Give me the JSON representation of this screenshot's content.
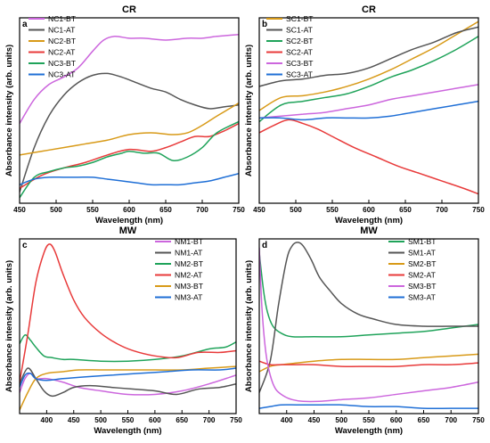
{
  "chart_data": [
    {
      "type": "line",
      "panel_label": "a",
      "title": "CR",
      "xlabel": "Wavelength (nm)",
      "ylabel": "Absorbance intensity (arb. units)",
      "xlim": [
        450,
        750
      ],
      "xticks": [
        450,
        500,
        550,
        600,
        650,
        700,
        750
      ],
      "ylim": [
        0,
        1
      ],
      "y_tick_labels": false,
      "legend_position": "top-left",
      "series": [
        {
          "name": "NC1-BT",
          "color": "#cc66dd",
          "x": [
            450,
            470,
            490,
            510,
            530,
            550,
            565,
            580,
            600,
            620,
            650,
            680,
            700,
            720,
            750
          ],
          "y": [
            0.43,
            0.56,
            0.64,
            0.68,
            0.73,
            0.82,
            0.88,
            0.9,
            0.89,
            0.89,
            0.88,
            0.89,
            0.89,
            0.9,
            0.91
          ]
        },
        {
          "name": "NC1-AT",
          "color": "#555555",
          "x": [
            450,
            470,
            490,
            510,
            530,
            550,
            570,
            590,
            610,
            630,
            650,
            670,
            690,
            710,
            730,
            750
          ],
          "y": [
            0.06,
            0.3,
            0.47,
            0.58,
            0.65,
            0.69,
            0.7,
            0.68,
            0.65,
            0.62,
            0.6,
            0.56,
            0.53,
            0.51,
            0.52,
            0.53
          ]
        },
        {
          "name": "NC2-BT",
          "color": "#d89a18",
          "x": [
            450,
            480,
            510,
            540,
            570,
            600,
            630,
            660,
            680,
            700,
            720,
            750
          ],
          "y": [
            0.26,
            0.28,
            0.3,
            0.32,
            0.34,
            0.37,
            0.38,
            0.37,
            0.38,
            0.42,
            0.47,
            0.54
          ]
        },
        {
          "name": "NC2-AT",
          "color": "#e83a3a",
          "x": [
            450,
            480,
            510,
            540,
            570,
            600,
            630,
            650,
            670,
            690,
            710,
            730,
            750
          ],
          "y": [
            0.08,
            0.15,
            0.19,
            0.22,
            0.26,
            0.29,
            0.28,
            0.3,
            0.33,
            0.36,
            0.36,
            0.39,
            0.43
          ]
        },
        {
          "name": "NC3-BT",
          "color": "#1fa35a",
          "x": [
            450,
            470,
            490,
            510,
            530,
            550,
            570,
            590,
            600,
            620,
            640,
            660,
            680,
            700,
            720,
            750
          ],
          "y": [
            0.03,
            0.14,
            0.17,
            0.19,
            0.2,
            0.22,
            0.25,
            0.27,
            0.28,
            0.27,
            0.27,
            0.23,
            0.25,
            0.3,
            0.38,
            0.44
          ]
        },
        {
          "name": "NC3-AT",
          "color": "#1f6fd6",
          "x": [
            450,
            470,
            490,
            510,
            530,
            550,
            570,
            590,
            610,
            630,
            650,
            670,
            690,
            710,
            730,
            750
          ],
          "y": [
            0.1,
            0.13,
            0.14,
            0.14,
            0.14,
            0.14,
            0.13,
            0.12,
            0.11,
            0.1,
            0.1,
            0.1,
            0.11,
            0.12,
            0.14,
            0.16
          ]
        }
      ]
    },
    {
      "type": "line",
      "panel_label": "b",
      "title": "CR",
      "xlabel": "Wavelength (nm)",
      "ylabel": "Absorbance intensity (arb. units)",
      "xlim": [
        450,
        750
      ],
      "xticks": [
        450,
        500,
        550,
        600,
        650,
        700,
        750
      ],
      "ylim": [
        0,
        1
      ],
      "y_tick_labels": false,
      "legend_position": "top-left",
      "series": [
        {
          "name": "SC1-BT",
          "color": "#d89a18",
          "x": [
            450,
            480,
            510,
            540,
            570,
            600,
            630,
            660,
            690,
            720,
            750
          ],
          "y": [
            0.5,
            0.57,
            0.58,
            0.6,
            0.63,
            0.67,
            0.72,
            0.78,
            0.84,
            0.91,
            0.98
          ]
        },
        {
          "name": "SC1-AT",
          "color": "#555555",
          "x": [
            450,
            480,
            510,
            540,
            570,
            600,
            630,
            660,
            690,
            720,
            750
          ],
          "y": [
            0.63,
            0.66,
            0.67,
            0.69,
            0.7,
            0.73,
            0.78,
            0.83,
            0.87,
            0.92,
            0.95
          ]
        },
        {
          "name": "SC2-BT",
          "color": "#1fa35a",
          "x": [
            450,
            480,
            510,
            540,
            570,
            600,
            630,
            660,
            690,
            720,
            750
          ],
          "y": [
            0.44,
            0.53,
            0.55,
            0.57,
            0.59,
            0.63,
            0.68,
            0.72,
            0.77,
            0.83,
            0.9
          ]
        },
        {
          "name": "SC2-AT",
          "color": "#e83a3a",
          "x": [
            450,
            470,
            490,
            510,
            530,
            550,
            580,
            610,
            640,
            670,
            700,
            730,
            750
          ],
          "y": [
            0.38,
            0.42,
            0.45,
            0.43,
            0.4,
            0.36,
            0.3,
            0.25,
            0.2,
            0.16,
            0.12,
            0.08,
            0.05
          ]
        },
        {
          "name": "SC3-BT",
          "color": "#cc66dd",
          "x": [
            450,
            480,
            510,
            540,
            570,
            600,
            630,
            660,
            690,
            720,
            750
          ],
          "y": [
            0.46,
            0.47,
            0.48,
            0.49,
            0.51,
            0.53,
            0.56,
            0.58,
            0.6,
            0.62,
            0.64
          ]
        },
        {
          "name": "SC3-AT",
          "color": "#1f6fd6",
          "x": [
            450,
            480,
            510,
            540,
            570,
            600,
            630,
            660,
            690,
            720,
            750
          ],
          "y": [
            0.46,
            0.46,
            0.45,
            0.46,
            0.46,
            0.46,
            0.47,
            0.49,
            0.51,
            0.53,
            0.55
          ]
        }
      ]
    },
    {
      "type": "line",
      "panel_label": "c",
      "title": "MW",
      "xlabel": "Wavelength (nm)",
      "ylabel": "Absorbance intensity (arb. units)",
      "xlim": [
        350,
        750
      ],
      "xticks": [
        400,
        450,
        500,
        550,
        600,
        650,
        700,
        750
      ],
      "ylim": [
        0,
        1
      ],
      "y_tick_labels": false,
      "legend_position": "top-right",
      "series": [
        {
          "name": "NM1-BT",
          "color": "#cc66dd",
          "x": [
            350,
            360,
            370,
            380,
            400,
            430,
            460,
            500,
            550,
            600,
            650,
            700,
            750
          ],
          "y": [
            0.12,
            0.2,
            0.23,
            0.2,
            0.2,
            0.18,
            0.15,
            0.13,
            0.11,
            0.11,
            0.13,
            0.17,
            0.22
          ]
        },
        {
          "name": "NM1-AT",
          "color": "#555555",
          "x": [
            350,
            365,
            380,
            395,
            410,
            430,
            450,
            480,
            520,
            560,
            600,
            640,
            680,
            720,
            750
          ],
          "y": [
            0.17,
            0.26,
            0.2,
            0.13,
            0.1,
            0.12,
            0.15,
            0.16,
            0.15,
            0.14,
            0.13,
            0.11,
            0.14,
            0.15,
            0.17
          ]
        },
        {
          "name": "NM2-BT",
          "color": "#1fa35a",
          "x": [
            350,
            360,
            370,
            380,
            395,
            410,
            430,
            450,
            500,
            550,
            600,
            650,
            700,
            730,
            750
          ],
          "y": [
            0.4,
            0.45,
            0.42,
            0.38,
            0.33,
            0.32,
            0.31,
            0.31,
            0.3,
            0.3,
            0.31,
            0.33,
            0.37,
            0.38,
            0.41
          ]
        },
        {
          "name": "NM2-AT",
          "color": "#e83a3a",
          "x": [
            350,
            365,
            380,
            395,
            405,
            415,
            430,
            450,
            470,
            500,
            530,
            560,
            600,
            640,
            680,
            720,
            750
          ],
          "y": [
            0.18,
            0.45,
            0.75,
            0.92,
            0.97,
            0.93,
            0.8,
            0.65,
            0.55,
            0.46,
            0.4,
            0.36,
            0.33,
            0.32,
            0.35,
            0.35,
            0.36
          ]
        },
        {
          "name": "NM3-BT",
          "color": "#d89a18",
          "x": [
            350,
            365,
            380,
            400,
            430,
            460,
            500,
            550,
            600,
            650,
            700,
            750
          ],
          "y": [
            0.02,
            0.12,
            0.2,
            0.23,
            0.24,
            0.25,
            0.25,
            0.25,
            0.25,
            0.25,
            0.26,
            0.27
          ]
        },
        {
          "name": "NM3-AT",
          "color": "#1f6fd6",
          "x": [
            350,
            360,
            370,
            380,
            400,
            430,
            470,
            520,
            570,
            620,
            670,
            720,
            750
          ],
          "y": [
            0.15,
            0.22,
            0.23,
            0.2,
            0.19,
            0.2,
            0.21,
            0.22,
            0.23,
            0.24,
            0.25,
            0.25,
            0.26
          ]
        }
      ]
    },
    {
      "type": "line",
      "panel_label": "d",
      "title": "MW",
      "xlabel": "Wavelength (nm)",
      "ylabel": "Absorbance intensity (arb. units)",
      "xlim": [
        350,
        750
      ],
      "xticks": [
        400,
        450,
        500,
        550,
        600,
        650,
        700,
        750
      ],
      "ylim": [
        0,
        1
      ],
      "y_tick_labels": false,
      "legend_position": "top-right",
      "series": [
        {
          "name": "SM1-BT",
          "color": "#1fa35a",
          "x": [
            350,
            358,
            365,
            375,
            390,
            410,
            450,
            500,
            550,
            600,
            650,
            700,
            750
          ],
          "y": [
            0.92,
            0.7,
            0.58,
            0.5,
            0.46,
            0.44,
            0.44,
            0.44,
            0.45,
            0.46,
            0.47,
            0.49,
            0.51
          ]
        },
        {
          "name": "SM1-AT",
          "color": "#555555",
          "x": [
            350,
            370,
            385,
            400,
            410,
            420,
            430,
            445,
            460,
            480,
            500,
            530,
            560,
            600,
            650,
            700,
            750
          ],
          "y": [
            0.12,
            0.3,
            0.62,
            0.88,
            0.96,
            0.98,
            0.96,
            0.88,
            0.78,
            0.7,
            0.63,
            0.57,
            0.54,
            0.51,
            0.5,
            0.5,
            0.5
          ]
        },
        {
          "name": "SM2-BT",
          "color": "#d89a18",
          "x": [
            350,
            370,
            390,
            420,
            450,
            500,
            550,
            600,
            650,
            700,
            750
          ],
          "y": [
            0.24,
            0.27,
            0.28,
            0.29,
            0.3,
            0.31,
            0.31,
            0.31,
            0.32,
            0.33,
            0.34
          ]
        },
        {
          "name": "SM2-AT",
          "color": "#e83a3a",
          "x": [
            350,
            370,
            390,
            420,
            450,
            500,
            550,
            600,
            650,
            700,
            750
          ],
          "y": [
            0.3,
            0.28,
            0.28,
            0.28,
            0.28,
            0.27,
            0.27,
            0.27,
            0.28,
            0.28,
            0.29
          ]
        },
        {
          "name": "SM3-BT",
          "color": "#cc66dd",
          "x": [
            350,
            355,
            362,
            370,
            380,
            395,
            410,
            430,
            460,
            500,
            550,
            600,
            650,
            700,
            750
          ],
          "y": [
            0.95,
            0.6,
            0.35,
            0.22,
            0.14,
            0.1,
            0.08,
            0.07,
            0.07,
            0.08,
            0.09,
            0.11,
            0.13,
            0.15,
            0.18
          ]
        },
        {
          "name": "SM3-AT",
          "color": "#1f6fd6",
          "x": [
            350,
            370,
            390,
            420,
            460,
            500,
            550,
            600,
            650,
            700,
            750
          ],
          "y": [
            0.03,
            0.04,
            0.05,
            0.05,
            0.05,
            0.05,
            0.04,
            0.04,
            0.03,
            0.03,
            0.03
          ]
        }
      ]
    }
  ]
}
